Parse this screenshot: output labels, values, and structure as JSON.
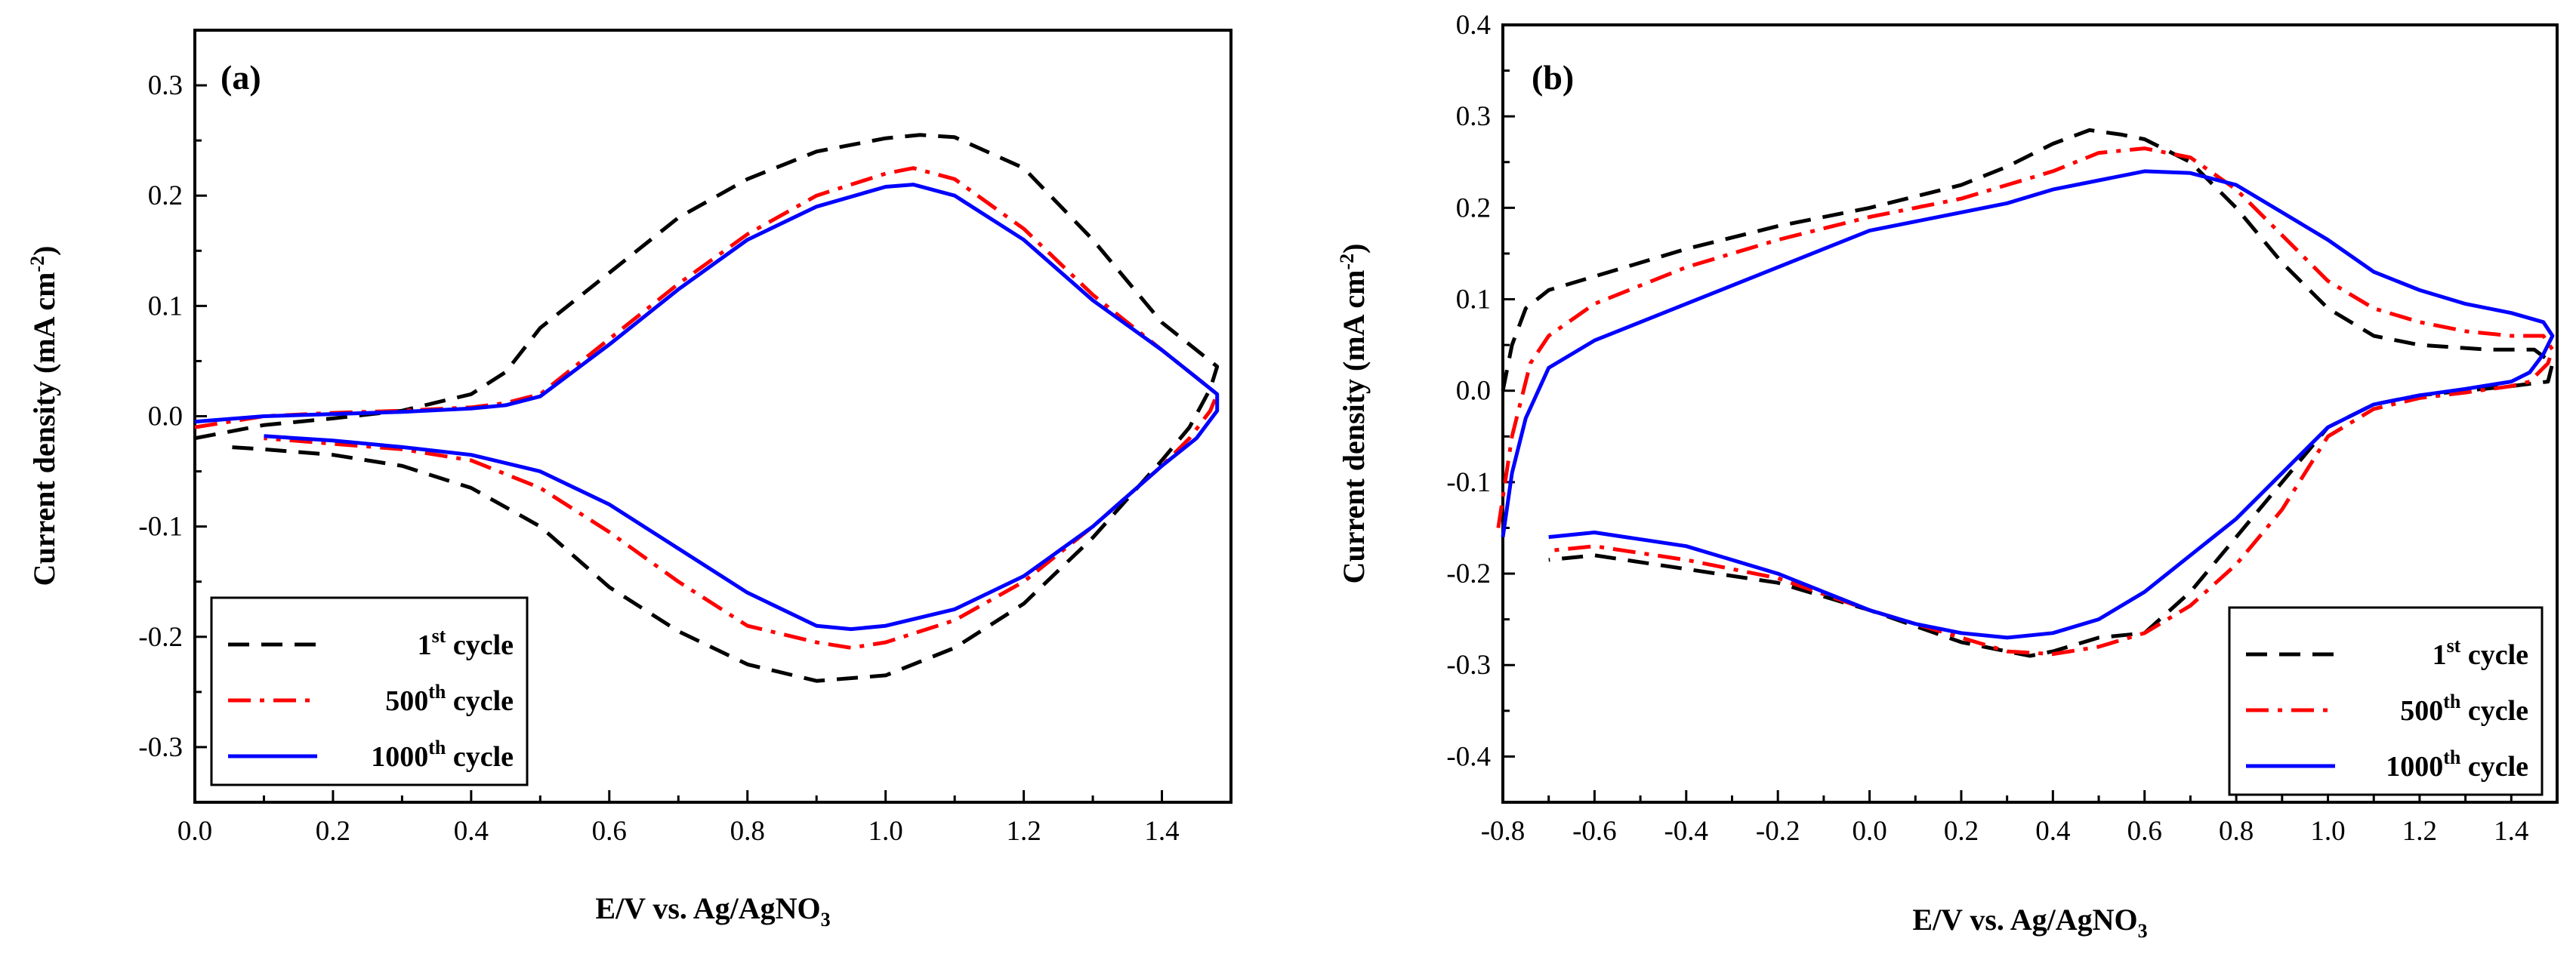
{
  "chart_data": [
    {
      "panel": "(a)",
      "type": "line",
      "xlabel": "E/V vs. Ag/AgNO",
      "xlabel_sub": "3",
      "ylabel": "Current density (mA cm",
      "ylabel_sup": "-2",
      "ylabel_close": ")",
      "xlim": [
        0.0,
        1.5
      ],
      "ylim": [
        -0.35,
        0.35
      ],
      "xticks": [
        "0.0",
        "0.2",
        "0.4",
        "0.6",
        "0.8",
        "1.0",
        "1.2",
        "1.4"
      ],
      "yticks": [
        "-0.3",
        "-0.2",
        "-0.1",
        "0.0",
        "0.1",
        "0.2",
        "0.3"
      ],
      "xtick_values": [
        0.0,
        0.2,
        0.4,
        0.6,
        0.8,
        1.0,
        1.2,
        1.4
      ],
      "ytick_values": [
        -0.3,
        -0.2,
        -0.1,
        0.0,
        0.1,
        0.2,
        0.3
      ],
      "legend_position": "bottom-left",
      "series": [
        {
          "name": "1st cycle",
          "label_main": "1",
          "label_sup": "st",
          "label_rest": " cycle",
          "color": "#000000",
          "style": "dashed",
          "points": [
            [
              0.0,
              -0.02
            ],
            [
              0.1,
              -0.008
            ],
            [
              0.2,
              -0.002
            ],
            [
              0.3,
              0.005
            ],
            [
              0.4,
              0.02
            ],
            [
              0.45,
              0.04
            ],
            [
              0.5,
              0.08
            ],
            [
              0.6,
              0.13
            ],
            [
              0.7,
              0.18
            ],
            [
              0.8,
              0.215
            ],
            [
              0.9,
              0.24
            ],
            [
              1.0,
              0.252
            ],
            [
              1.05,
              0.255
            ],
            [
              1.1,
              0.253
            ],
            [
              1.2,
              0.225
            ],
            [
              1.3,
              0.16
            ],
            [
              1.4,
              0.085
            ],
            [
              1.45,
              0.06
            ],
            [
              1.48,
              0.045
            ],
            [
              1.47,
              0.025
            ],
            [
              1.44,
              -0.01
            ],
            [
              1.4,
              -0.04
            ],
            [
              1.3,
              -0.11
            ],
            [
              1.2,
              -0.17
            ],
            [
              1.1,
              -0.21
            ],
            [
              1.0,
              -0.235
            ],
            [
              0.9,
              -0.24
            ],
            [
              0.8,
              -0.225
            ],
            [
              0.7,
              -0.195
            ],
            [
              0.6,
              -0.155
            ],
            [
              0.5,
              -0.1
            ],
            [
              0.4,
              -0.065
            ],
            [
              0.3,
              -0.045
            ],
            [
              0.2,
              -0.035
            ],
            [
              0.1,
              -0.03
            ],
            [
              0.05,
              -0.028
            ]
          ]
        },
        {
          "name": "500th cycle",
          "label_main": "500",
          "label_sup": "th",
          "label_rest": " cycle",
          "color": "#ff0000",
          "style": "dashdot",
          "points": [
            [
              0.0,
              -0.01
            ],
            [
              0.1,
              0.0
            ],
            [
              0.2,
              0.003
            ],
            [
              0.3,
              0.005
            ],
            [
              0.4,
              0.008
            ],
            [
              0.45,
              0.012
            ],
            [
              0.5,
              0.02
            ],
            [
              0.6,
              0.07
            ],
            [
              0.7,
              0.12
            ],
            [
              0.8,
              0.165
            ],
            [
              0.9,
              0.2
            ],
            [
              1.0,
              0.22
            ],
            [
              1.04,
              0.225
            ],
            [
              1.1,
              0.215
            ],
            [
              1.2,
              0.17
            ],
            [
              1.3,
              0.11
            ],
            [
              1.4,
              0.06
            ],
            [
              1.45,
              0.035
            ],
            [
              1.48,
              0.02
            ],
            [
              1.47,
              0.005
            ],
            [
              1.44,
              -0.02
            ],
            [
              1.4,
              -0.045
            ],
            [
              1.3,
              -0.1
            ],
            [
              1.2,
              -0.15
            ],
            [
              1.1,
              -0.185
            ],
            [
              1.0,
              -0.205
            ],
            [
              0.95,
              -0.21
            ],
            [
              0.9,
              -0.205
            ],
            [
              0.8,
              -0.19
            ],
            [
              0.7,
              -0.15
            ],
            [
              0.6,
              -0.105
            ],
            [
              0.5,
              -0.065
            ],
            [
              0.4,
              -0.04
            ],
            [
              0.3,
              -0.03
            ],
            [
              0.2,
              -0.025
            ],
            [
              0.1,
              -0.02
            ]
          ]
        },
        {
          "name": "1000th cycle",
          "label_main": "1000",
          "label_sup": "th",
          "label_rest": " cycle",
          "color": "#0000ff",
          "style": "solid",
          "points": [
            [
              0.0,
              -0.005
            ],
            [
              0.1,
              0.0
            ],
            [
              0.2,
              0.002
            ],
            [
              0.3,
              0.004
            ],
            [
              0.4,
              0.007
            ],
            [
              0.45,
              0.01
            ],
            [
              0.5,
              0.018
            ],
            [
              0.6,
              0.065
            ],
            [
              0.7,
              0.115
            ],
            [
              0.8,
              0.16
            ],
            [
              0.9,
              0.19
            ],
            [
              1.0,
              0.208
            ],
            [
              1.04,
              0.21
            ],
            [
              1.1,
              0.2
            ],
            [
              1.2,
              0.16
            ],
            [
              1.3,
              0.105
            ],
            [
              1.4,
              0.06
            ],
            [
              1.45,
              0.035
            ],
            [
              1.48,
              0.02
            ],
            [
              1.48,
              0.005
            ],
            [
              1.45,
              -0.02
            ],
            [
              1.4,
              -0.045
            ],
            [
              1.3,
              -0.1
            ],
            [
              1.2,
              -0.145
            ],
            [
              1.1,
              -0.175
            ],
            [
              1.0,
              -0.19
            ],
            [
              0.95,
              -0.193
            ],
            [
              0.9,
              -0.19
            ],
            [
              0.8,
              -0.16
            ],
            [
              0.7,
              -0.12
            ],
            [
              0.6,
              -0.08
            ],
            [
              0.5,
              -0.05
            ],
            [
              0.4,
              -0.035
            ],
            [
              0.3,
              -0.028
            ],
            [
              0.2,
              -0.022
            ],
            [
              0.1,
              -0.018
            ]
          ]
        }
      ]
    },
    {
      "panel": "(b)",
      "type": "line",
      "xlabel": "E/V vs. Ag/AgNO",
      "xlabel_sub": "3",
      "ylabel": "Current density (mA cm",
      "ylabel_sup": "-2",
      "ylabel_close": ")",
      "xlim": [
        -0.8,
        1.5
      ],
      "ylim": [
        -0.45,
        0.4
      ],
      "xticks": [
        "-0.8",
        "-0.6",
        "-0.4",
        "-0.2",
        "0.0",
        "0.2",
        "0.4",
        "0.6",
        "0.8",
        "1.0",
        "1.2",
        "1.4"
      ],
      "yticks": [
        "-0.4",
        "-0.3",
        "-0.2",
        "-0.1",
        "0.0",
        "0.1",
        "0.2",
        "0.3",
        "0.4"
      ],
      "xtick_values": [
        -0.8,
        -0.6,
        -0.4,
        -0.2,
        0.0,
        0.2,
        0.4,
        0.6,
        0.8,
        1.0,
        1.2,
        1.4
      ],
      "ytick_values": [
        -0.4,
        -0.3,
        -0.2,
        -0.1,
        0.0,
        0.1,
        0.2,
        0.3,
        0.4
      ],
      "legend_position": "bottom-right",
      "series": [
        {
          "name": "1st cycle",
          "label_main": "1",
          "label_sup": "st",
          "label_rest": " cycle",
          "color": "#000000",
          "style": "dashed",
          "points": [
            [
              -0.8,
              0.0
            ],
            [
              -0.78,
              0.05
            ],
            [
              -0.75,
              0.09
            ],
            [
              -0.7,
              0.11
            ],
            [
              -0.6,
              0.125
            ],
            [
              -0.4,
              0.155
            ],
            [
              -0.2,
              0.18
            ],
            [
              0.0,
              0.2
            ],
            [
              0.2,
              0.225
            ],
            [
              0.3,
              0.245
            ],
            [
              0.4,
              0.27
            ],
            [
              0.48,
              0.285
            ],
            [
              0.55,
              0.28
            ],
            [
              0.6,
              0.275
            ],
            [
              0.7,
              0.25
            ],
            [
              0.8,
              0.2
            ],
            [
              0.9,
              0.14
            ],
            [
              1.0,
              0.09
            ],
            [
              1.1,
              0.06
            ],
            [
              1.2,
              0.05
            ],
            [
              1.35,
              0.045
            ],
            [
              1.45,
              0.045
            ],
            [
              1.49,
              0.03
            ],
            [
              1.48,
              0.01
            ],
            [
              1.4,
              0.005
            ],
            [
              1.3,
              0.0
            ],
            [
              1.2,
              -0.005
            ],
            [
              1.1,
              -0.015
            ],
            [
              1.0,
              -0.04
            ],
            [
              0.9,
              -0.1
            ],
            [
              0.8,
              -0.16
            ],
            [
              0.7,
              -0.22
            ],
            [
              0.6,
              -0.265
            ],
            [
              0.5,
              -0.27
            ],
            [
              0.4,
              -0.285
            ],
            [
              0.35,
              -0.29
            ],
            [
              0.3,
              -0.285
            ],
            [
              0.2,
              -0.275
            ],
            [
              0.0,
              -0.24
            ],
            [
              -0.2,
              -0.21
            ],
            [
              -0.4,
              -0.195
            ],
            [
              -0.6,
              -0.18
            ],
            [
              -0.7,
              -0.185
            ]
          ]
        },
        {
          "name": "500th cycle",
          "label_main": "500",
          "label_sup": "th",
          "label_rest": " cycle",
          "color": "#ff0000",
          "style": "dashdot",
          "points": [
            [
              -0.81,
              -0.15
            ],
            [
              -0.78,
              -0.05
            ],
            [
              -0.74,
              0.03
            ],
            [
              -0.7,
              0.06
            ],
            [
              -0.6,
              0.095
            ],
            [
              -0.4,
              0.135
            ],
            [
              -0.2,
              0.165
            ],
            [
              0.0,
              0.19
            ],
            [
              0.2,
              0.21
            ],
            [
              0.4,
              0.24
            ],
            [
              0.5,
              0.26
            ],
            [
              0.6,
              0.265
            ],
            [
              0.7,
              0.255
            ],
            [
              0.8,
              0.22
            ],
            [
              0.9,
              0.17
            ],
            [
              1.0,
              0.12
            ],
            [
              1.1,
              0.09
            ],
            [
              1.2,
              0.075
            ],
            [
              1.3,
              0.065
            ],
            [
              1.4,
              0.06
            ],
            [
              1.47,
              0.06
            ],
            [
              1.49,
              0.045
            ],
            [
              1.48,
              0.03
            ],
            [
              1.44,
              0.01
            ],
            [
              1.4,
              0.005
            ],
            [
              1.3,
              -0.002
            ],
            [
              1.2,
              -0.008
            ],
            [
              1.1,
              -0.02
            ],
            [
              1.0,
              -0.05
            ],
            [
              0.9,
              -0.13
            ],
            [
              0.8,
              -0.19
            ],
            [
              0.7,
              -0.235
            ],
            [
              0.6,
              -0.265
            ],
            [
              0.5,
              -0.28
            ],
            [
              0.4,
              -0.288
            ],
            [
              0.3,
              -0.285
            ],
            [
              0.2,
              -0.27
            ],
            [
              0.0,
              -0.24
            ],
            [
              -0.2,
              -0.205
            ],
            [
              -0.4,
              -0.185
            ],
            [
              -0.6,
              -0.17
            ],
            [
              -0.7,
              -0.175
            ]
          ]
        },
        {
          "name": "1000th cycle",
          "label_main": "1000",
          "label_sup": "th",
          "label_rest": " cycle",
          "color": "#0000ff",
          "style": "solid",
          "points": [
            [
              -0.8,
              -0.16
            ],
            [
              -0.78,
              -0.09
            ],
            [
              -0.75,
              -0.03
            ],
            [
              -0.7,
              0.025
            ],
            [
              -0.6,
              0.055
            ],
            [
              -0.4,
              0.095
            ],
            [
              -0.2,
              0.135
            ],
            [
              0.0,
              0.175
            ],
            [
              0.2,
              0.195
            ],
            [
              0.3,
              0.205
            ],
            [
              0.4,
              0.22
            ],
            [
              0.5,
              0.23
            ],
            [
              0.6,
              0.24
            ],
            [
              0.7,
              0.238
            ],
            [
              0.8,
              0.225
            ],
            [
              0.9,
              0.195
            ],
            [
              1.0,
              0.165
            ],
            [
              1.1,
              0.13
            ],
            [
              1.2,
              0.11
            ],
            [
              1.3,
              0.095
            ],
            [
              1.4,
              0.085
            ],
            [
              1.47,
              0.075
            ],
            [
              1.49,
              0.06
            ],
            [
              1.47,
              0.04
            ],
            [
              1.44,
              0.02
            ],
            [
              1.4,
              0.01
            ],
            [
              1.3,
              0.002
            ],
            [
              1.2,
              -0.005
            ],
            [
              1.1,
              -0.015
            ],
            [
              1.0,
              -0.04
            ],
            [
              0.9,
              -0.09
            ],
            [
              0.8,
              -0.14
            ],
            [
              0.7,
              -0.18
            ],
            [
              0.6,
              -0.22
            ],
            [
              0.5,
              -0.25
            ],
            [
              0.4,
              -0.265
            ],
            [
              0.3,
              -0.27
            ],
            [
              0.2,
              -0.265
            ],
            [
              0.1,
              -0.255
            ],
            [
              0.0,
              -0.24
            ],
            [
              -0.2,
              -0.2
            ],
            [
              -0.4,
              -0.17
            ],
            [
              -0.6,
              -0.155
            ],
            [
              -0.7,
              -0.16
            ]
          ]
        }
      ]
    }
  ]
}
